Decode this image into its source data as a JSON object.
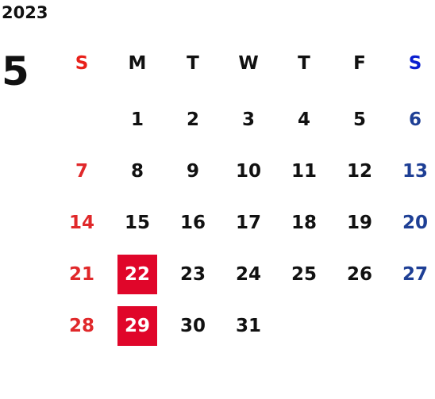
{
  "year": "2023",
  "month": "5",
  "weekdays": [
    "S",
    "M",
    "T",
    "W",
    "T",
    "F",
    "S"
  ],
  "weeks": [
    [
      null,
      "1",
      "2",
      "3",
      "4",
      "5",
      "6"
    ],
    [
      "7",
      "8",
      "9",
      "10",
      "11",
      "12",
      "13"
    ],
    [
      "14",
      "15",
      "16",
      "17",
      "18",
      "19",
      "20"
    ],
    [
      "21",
      "22",
      "23",
      "24",
      "25",
      "26",
      "27"
    ],
    [
      "28",
      "29",
      "30",
      "31",
      null,
      null,
      null
    ]
  ],
  "highlighted": [
    "22",
    "29"
  ],
  "colors": {
    "sunday_header": "#e8201a",
    "saturday_header": "#0a1fd0",
    "sunday": "#e0282a",
    "saturday": "#1e3f95",
    "weekday": "#111111",
    "highlight_bg": "#e0062a",
    "highlight_text": "#ffffff"
  }
}
